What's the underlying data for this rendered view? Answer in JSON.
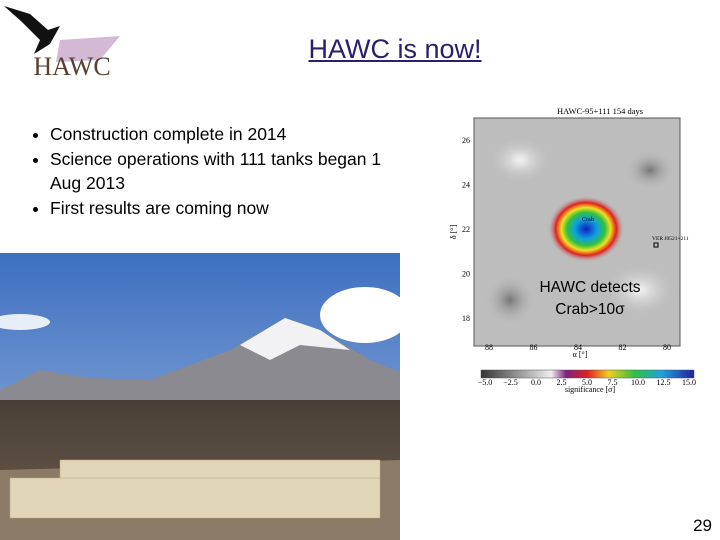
{
  "logo": {
    "text": "HAWC"
  },
  "header": {
    "title": "HAWC is now!"
  },
  "bullets": [
    "Construction complete in 2014",
    "Science operations with 111 tanks began 1 Aug 2013",
    "First results are coming now"
  ],
  "skymap": {
    "title": "HAWC-95+111 154 days",
    "y_axis_label": "δ [°]",
    "x_axis_label": "α [°]",
    "yticks": [
      "26",
      "24",
      "22",
      "20",
      "18"
    ],
    "xticks": [
      "88",
      "86",
      "84",
      "82",
      "80"
    ],
    "source_label": "Crab",
    "other_source_label": "VER J0521+211",
    "colorbar_ticks": [
      "−5.0",
      "−2.5",
      "0.0",
      "2.5",
      "5.0",
      "7.5",
      "10.0",
      "12.5",
      "15.0"
    ],
    "colorbar_label": "significance [σ]"
  },
  "caption": [
    "HAWC detects",
    "Crab>10σ"
  ],
  "page_number": "29"
}
